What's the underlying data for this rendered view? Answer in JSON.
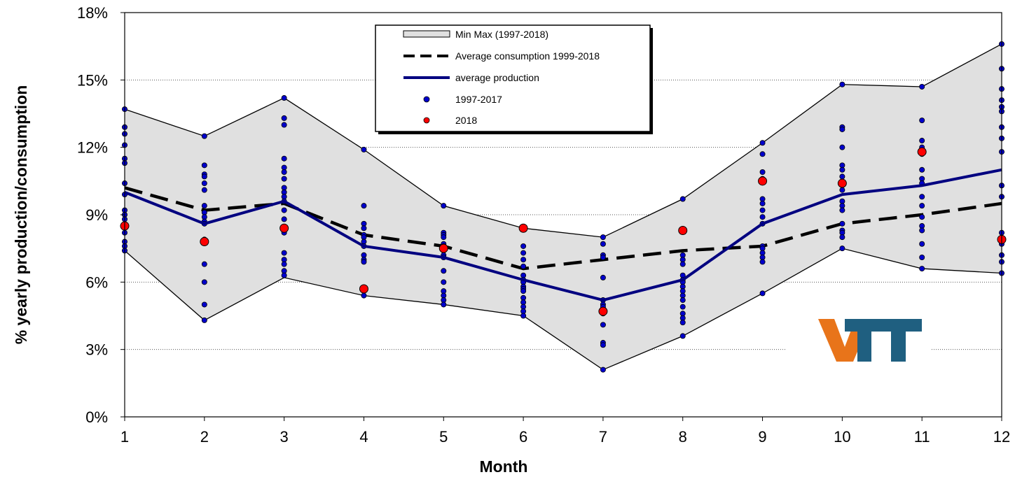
{
  "chart_data": {
    "type": "line",
    "title": "",
    "xlabel": "Month",
    "ylabel": "% yearly production/consumption",
    "x": [
      1,
      2,
      3,
      4,
      5,
      6,
      7,
      8,
      9,
      10,
      11,
      12
    ],
    "x_ticks": [
      "1",
      "2",
      "3",
      "4",
      "5",
      "6",
      "7",
      "8",
      "9",
      "10",
      "11",
      "12"
    ],
    "ylim": [
      0,
      0.18
    ],
    "y_ticks": [
      0,
      0.03,
      0.06,
      0.09,
      0.12,
      0.15,
      0.18
    ],
    "y_tick_labels": [
      "0%",
      "3%",
      "6%",
      "9%",
      "12%",
      "15%",
      "18%"
    ],
    "grid": "horizontal dotted",
    "legend_position": "top-center",
    "colors": {
      "band_fill": "#e0e0e0",
      "band_edge": "#000000",
      "average_consumption": "#000000",
      "average_production": "#000080",
      "points_1997_2017": "#0000cc",
      "points_2018": "#ff0000",
      "logo_v": "#e8741a",
      "logo_tt": "#1f5f80"
    },
    "series": [
      {
        "name": "Min Max (1997-2018)",
        "type": "band",
        "min": [
          0.074,
          0.043,
          0.062,
          0.054,
          0.05,
          0.045,
          0.021,
          0.036,
          0.055,
          0.075,
          0.066,
          0.064
        ],
        "max": [
          0.137,
          0.125,
          0.142,
          0.119,
          0.094,
          0.084,
          0.08,
          0.097,
          0.122,
          0.148,
          0.147,
          0.166
        ]
      },
      {
        "name": "Average consumption 1999-2018",
        "type": "line",
        "style": "dashed",
        "values": [
          0.102,
          0.092,
          0.095,
          0.081,
          0.076,
          0.066,
          0.07,
          0.074,
          0.076,
          0.086,
          0.09,
          0.095
        ]
      },
      {
        "name": "average production",
        "type": "line",
        "style": "solid",
        "values": [
          0.1,
          0.086,
          0.096,
          0.076,
          0.071,
          0.061,
          0.052,
          0.061,
          0.086,
          0.099,
          0.103,
          0.11
        ]
      },
      {
        "name": "1997-2017",
        "type": "scatter",
        "points": [
          [
            [
              0.137,
              0.129,
              0.126,
              0.121,
              0.115,
              0.113,
              0.104,
              0.099,
              0.092,
              0.09,
              0.088,
              0.082,
              0.078,
              0.076,
              0.074
            ],
            [
              0.125,
              0.112,
              0.108,
              0.107,
              0.104,
              0.101,
              0.094,
              0.091,
              0.089,
              0.087,
              0.086,
              0.079,
              0.068,
              0.06,
              0.05,
              0.043
            ],
            [
              0.142,
              0.133,
              0.13,
              0.115,
              0.111,
              0.109,
              0.106,
              0.102,
              0.1,
              0.098,
              0.096,
              0.092,
              0.088,
              0.082,
              0.073,
              0.07,
              0.068,
              0.065,
              0.063
            ],
            [
              0.119,
              0.094,
              0.086,
              0.084,
              0.081,
              0.08,
              0.078,
              0.076,
              0.072,
              0.07,
              0.069,
              0.054
            ],
            [
              0.094,
              0.082,
              0.081,
              0.08,
              0.077,
              0.076,
              0.074,
              0.072,
              0.071,
              0.065,
              0.06,
              0.056,
              0.054,
              0.052,
              0.05
            ],
            [
              0.084,
              0.076,
              0.073,
              0.07,
              0.067,
              0.063,
              0.061,
              0.06,
              0.058,
              0.057,
              0.056,
              0.053,
              0.051,
              0.049,
              0.047,
              0.045
            ],
            [
              0.08,
              0.077,
              0.072,
              0.071,
              0.062,
              0.052,
              0.05,
              0.049,
              0.046,
              0.041,
              0.033,
              0.032,
              0.021
            ],
            [
              0.097,
              0.072,
              0.07,
              0.068,
              0.063,
              0.061,
              0.06,
              0.058,
              0.056,
              0.054,
              0.052,
              0.049,
              0.046,
              0.044,
              0.042,
              0.036
            ],
            [
              0.122,
              0.117,
              0.109,
              0.106,
              0.097,
              0.095,
              0.092,
              0.089,
              0.086,
              0.076,
              0.075,
              0.073,
              0.071,
              0.069,
              0.055
            ],
            [
              0.148,
              0.129,
              0.128,
              0.12,
              0.112,
              0.11,
              0.107,
              0.101,
              0.096,
              0.094,
              0.092,
              0.086,
              0.083,
              0.082,
              0.08,
              0.075
            ],
            [
              0.147,
              0.132,
              0.123,
              0.12,
              0.117,
              0.11,
              0.106,
              0.104,
              0.098,
              0.094,
              0.089,
              0.085,
              0.083,
              0.077,
              0.071,
              0.066
            ],
            [
              0.166,
              0.155,
              0.146,
              0.141,
              0.138,
              0.136,
              0.129,
              0.124,
              0.118,
              0.103,
              0.098,
              0.082,
              0.077,
              0.072,
              0.069,
              0.064
            ]
          ]
        ]
      },
      {
        "name": "2018",
        "type": "scatter",
        "values": [
          0.085,
          0.078,
          0.084,
          0.057,
          0.075,
          0.084,
          0.047,
          0.083,
          0.105,
          0.104,
          0.118,
          0.079
        ]
      }
    ]
  }
}
